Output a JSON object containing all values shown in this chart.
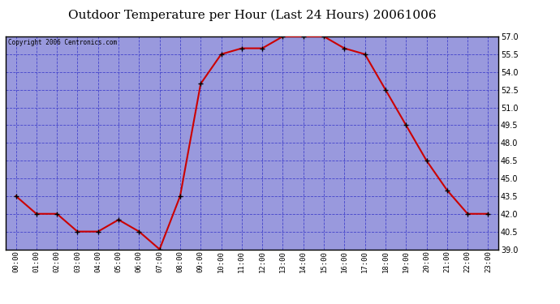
{
  "title": "Outdoor Temperature per Hour (Last 24 Hours) 20061006",
  "copyright_text": "Copyright 2006 Centronics.com",
  "hours": [
    "00:00",
    "01:00",
    "02:00",
    "03:00",
    "04:00",
    "05:00",
    "06:00",
    "07:00",
    "08:00",
    "09:00",
    "10:00",
    "11:00",
    "12:00",
    "13:00",
    "14:00",
    "15:00",
    "16:00",
    "17:00",
    "18:00",
    "19:00",
    "20:00",
    "21:00",
    "22:00",
    "23:00"
  ],
  "temperatures": [
    43.5,
    42.0,
    42.0,
    40.5,
    40.5,
    41.5,
    40.5,
    39.0,
    43.5,
    53.0,
    55.5,
    56.0,
    56.0,
    57.0,
    57.0,
    57.0,
    56.0,
    55.5,
    52.5,
    49.5,
    46.5,
    44.0,
    42.0,
    42.0
  ],
  "line_color": "#cc0000",
  "marker_color": "#000000",
  "fig_bg_color": "#ffffff",
  "plot_bg_color": "#9999dd",
  "grid_color": "#4444cc",
  "title_fontsize": 11,
  "ylim": [
    39.0,
    57.0
  ],
  "yticks": [
    39.0,
    40.5,
    42.0,
    43.5,
    45.0,
    46.5,
    48.0,
    49.5,
    51.0,
    52.5,
    54.0,
    55.5,
    57.0
  ]
}
